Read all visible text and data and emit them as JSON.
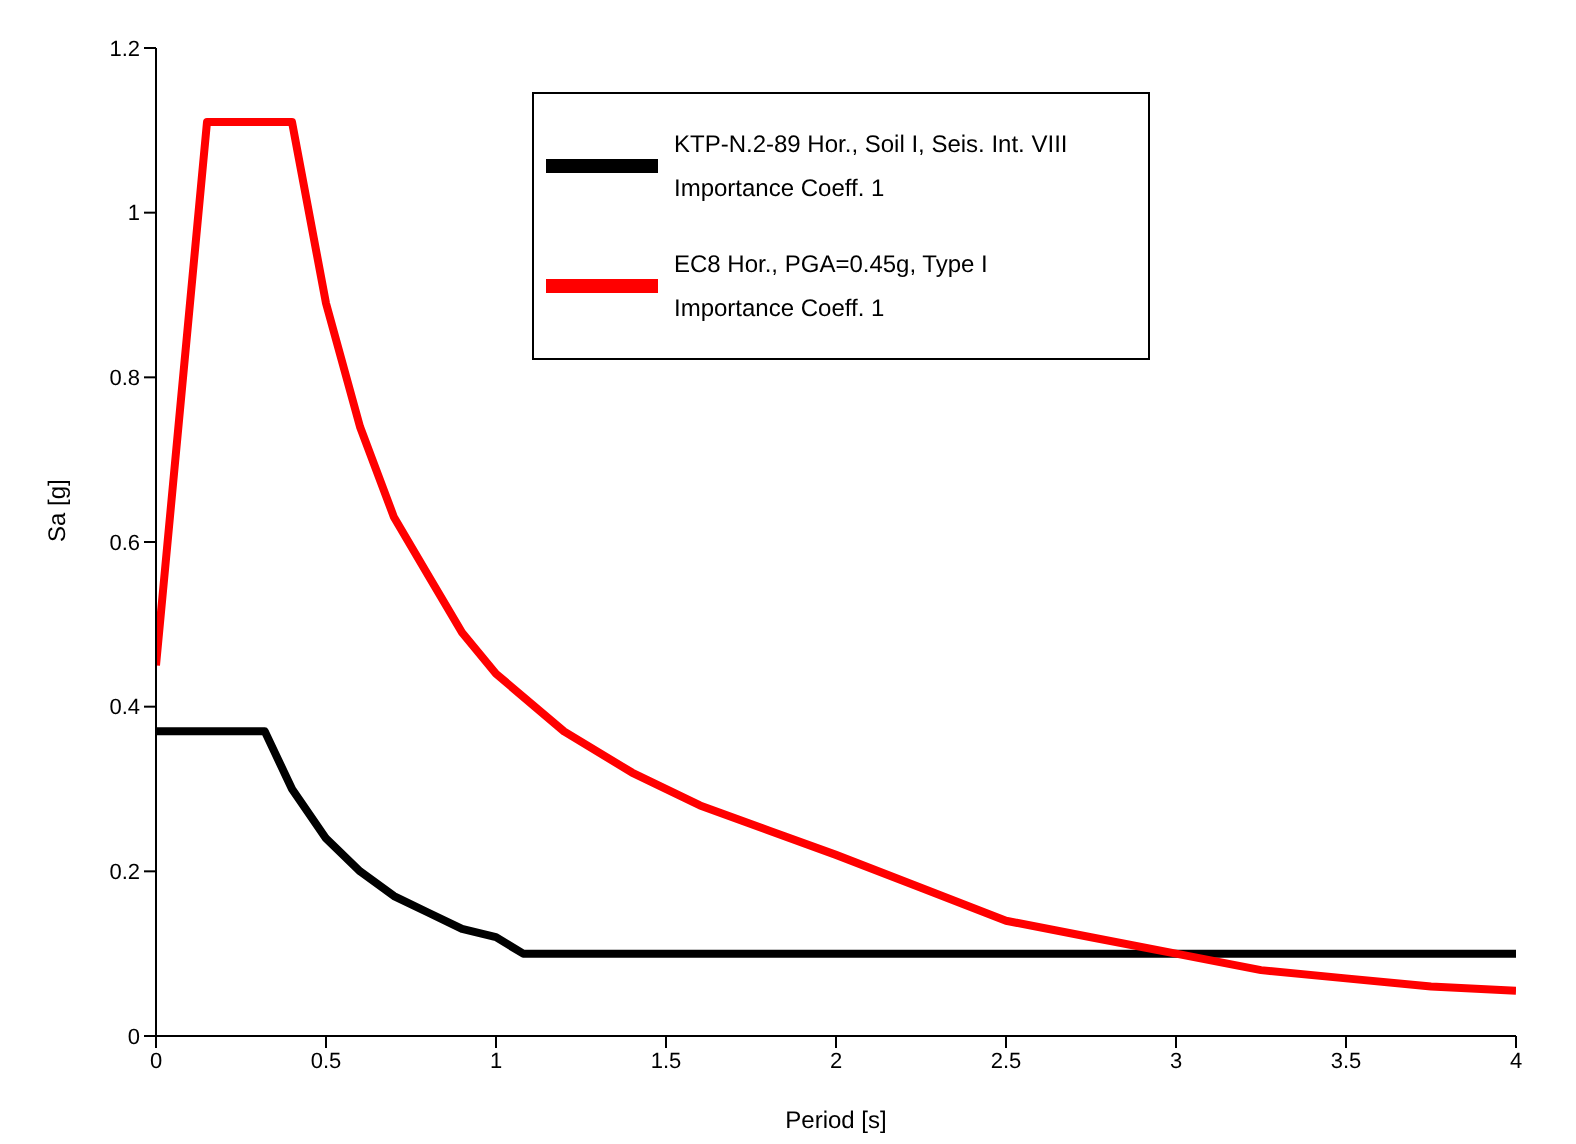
{
  "chart_data": {
    "type": "line",
    "xlabel": "Period [s]",
    "ylabel": "Sa [g]",
    "xlim": [
      0,
      4
    ],
    "xticks": [
      0,
      0.5,
      1,
      1.5,
      2,
      2.5,
      3,
      3.5,
      4
    ],
    "ylim": [
      0,
      1.2
    ],
    "yticks": [
      0,
      0.2,
      0.4,
      0.6,
      0.8,
      1,
      1.2
    ],
    "grid": false,
    "legend": "top right",
    "marker": "none",
    "line_style": "solid",
    "series": [
      {
        "name": "KTP-N.2-89 Hor., Soil I, Seis. Int. VIII\nImportance Coeff. 1",
        "color": "#000000",
        "x": [
          0,
          0.32,
          0.4,
          0.5,
          0.6,
          0.7,
          0.8,
          0.9,
          1.0,
          1.08,
          4
        ],
        "values": [
          0.37,
          0.37,
          0.3,
          0.24,
          0.2,
          0.17,
          0.15,
          0.13,
          0.12,
          0.1,
          0.1
        ]
      },
      {
        "name": "EC8 Hor., PGA=0.45g, Type I\nImportance Coeff. 1",
        "color": "#ff0000",
        "x": [
          0,
          0.15,
          0.4,
          0.5,
          0.6,
          0.7,
          0.8,
          0.9,
          1.0,
          1.2,
          1.4,
          1.6,
          1.8,
          2.0,
          2.25,
          2.5,
          2.75,
          3.0,
          3.25,
          3.5,
          3.75,
          4.0
        ],
        "values": [
          0.45,
          1.11,
          1.11,
          0.89,
          0.74,
          0.63,
          0.56,
          0.49,
          0.44,
          0.37,
          0.32,
          0.28,
          0.25,
          0.22,
          0.18,
          0.14,
          0.12,
          0.1,
          0.08,
          0.07,
          0.06,
          0.055
        ]
      }
    ]
  }
}
